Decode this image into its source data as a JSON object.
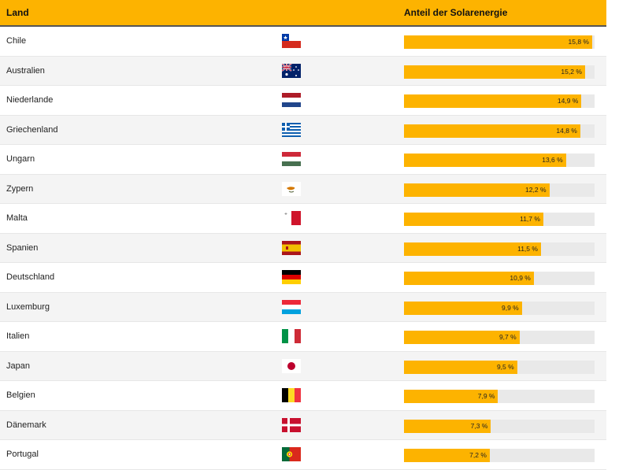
{
  "header": {
    "land": "Land",
    "share": "Anteil der Solarenergie"
  },
  "colors": {
    "accent": "#fdb300",
    "track": "#e9e9e9",
    "alt_row": "#f4f4f4"
  },
  "chart_data": {
    "type": "bar",
    "orientation": "horizontal",
    "title": "",
    "xlabel": "Anteil der Solarenergie",
    "ylabel": "Land",
    "unit": "%",
    "xlim": [
      0,
      16
    ],
    "categories": [
      "Chile",
      "Australien",
      "Niederlande",
      "Griechenland",
      "Ungarn",
      "Zypern",
      "Malta",
      "Spanien",
      "Deutschland",
      "Luxemburg",
      "Italien",
      "Japan",
      "Belgien",
      "Dänemark",
      "Portugal"
    ],
    "flags": [
      "chile-flag-icon",
      "australia-flag-icon",
      "netherlands-flag-icon",
      "greece-flag-icon",
      "hungary-flag-icon",
      "cyprus-flag-icon",
      "malta-flag-icon",
      "spain-flag-icon",
      "germany-flag-icon",
      "luxembourg-flag-icon",
      "italy-flag-icon",
      "japan-flag-icon",
      "belgium-flag-icon",
      "denmark-flag-icon",
      "portugal-flag-icon"
    ],
    "values": [
      15.8,
      15.2,
      14.9,
      14.8,
      13.6,
      12.2,
      11.7,
      11.5,
      10.9,
      9.9,
      9.7,
      9.5,
      7.9,
      7.3,
      7.2
    ],
    "labels": [
      "15,8 %",
      "15,2 %",
      "14,9 %",
      "14,8 %",
      "13,6 %",
      "12,2 %",
      "11,7 %",
      "11,5 %",
      "10,9 %",
      "9,9 %",
      "9,7 %",
      "9,5 %",
      "7,9 %",
      "7,3 %",
      "7,2 %"
    ]
  }
}
